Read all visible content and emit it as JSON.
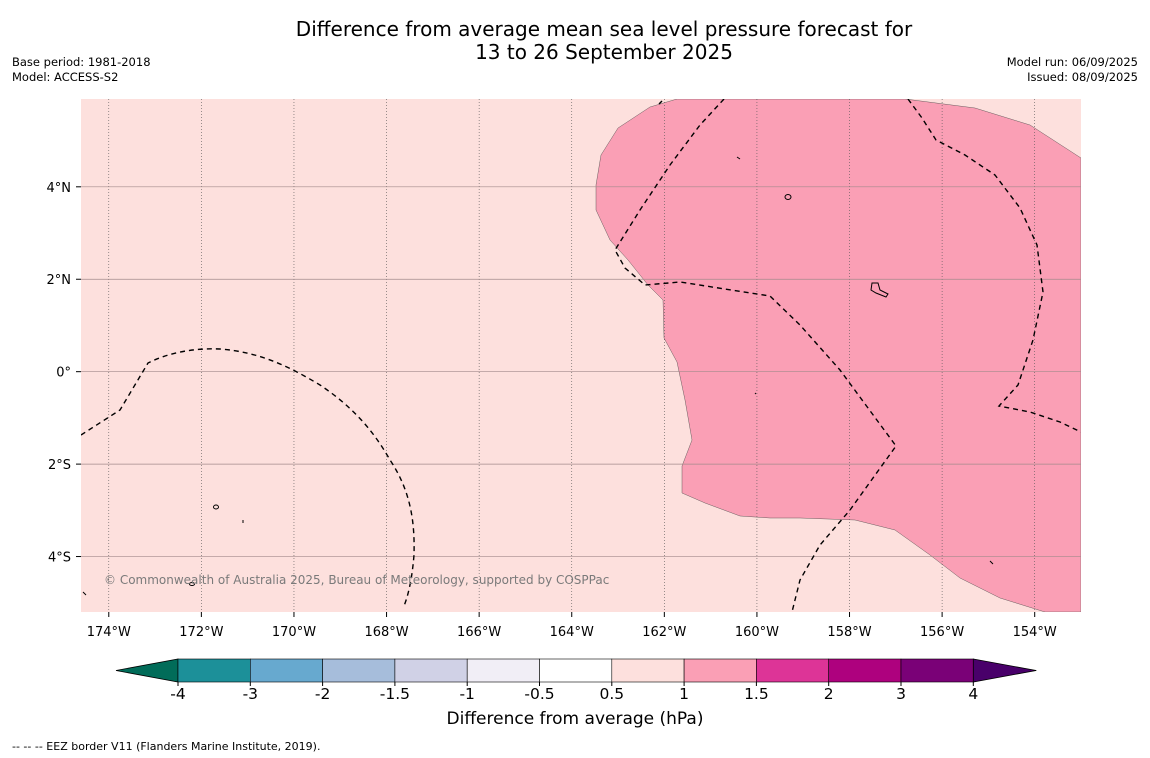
{
  "title_line1": "Difference from average mean sea level pressure forecast for",
  "title_line2": "13 to 26 September 2025",
  "base_period": "Base period: 1981-2018",
  "model": "Model: ACCESS-S2",
  "model_run": "Model run: 06/09/2025",
  "issued": "Issued: 08/09/2025",
  "map": {
    "lon_range": [
      -174.6,
      -153.0
    ],
    "lat_range": [
      -5.2,
      5.9
    ],
    "x_ticks": [
      "174°W",
      "172°W",
      "170°W",
      "168°W",
      "166°W",
      "164°W",
      "162°W",
      "160°W",
      "158°W",
      "156°W",
      "154°W"
    ],
    "x_tick_values": [
      -174,
      -172,
      -170,
      -168,
      -166,
      -164,
      -162,
      -160,
      -158,
      -156,
      -154
    ],
    "y_ticks": [
      "4°N",
      "2°N",
      "0°",
      "2°S",
      "4°S"
    ],
    "y_tick_values": [
      4,
      2,
      0,
      -2,
      -4
    ],
    "background_color": "#fde0dd",
    "anomaly_region_color": "#fa9fb5",
    "anomaly_region_range": "1 to 1.5",
    "copyright": "© Commonwealth of Australia 2025, Bureau of Meteorology, supported by COSPPac"
  },
  "colorbar": {
    "title": "Difference from average (hPa)",
    "labels": [
      "-4",
      "-3",
      "-2",
      "-1.5",
      "-1",
      "-0.5",
      "0.5",
      "1",
      "1.5",
      "2",
      "3",
      "4"
    ],
    "colors": [
      "#016c59",
      "#1c9099",
      "#67a9cf",
      "#a6bddb",
      "#d0d1e6",
      "#f1eef6",
      "#ffffff",
      "#fde0dd",
      "#fa9fb5",
      "#dd3497",
      "#ae017e",
      "#7a0177",
      "#49006a"
    ]
  },
  "footer": "--  --  -- EEZ border V11 (Flanders Marine Institute, 2019)."
}
